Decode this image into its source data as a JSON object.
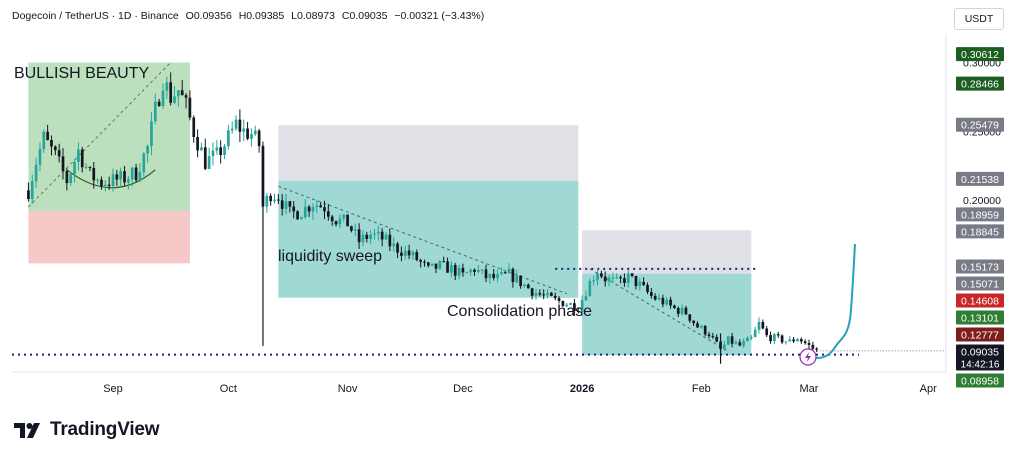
{
  "header": {
    "symbol": "Dogecoin / TetherUS · 1D · Binance",
    "open": "O0.09356",
    "high": "H0.09385",
    "low": "L0.08973",
    "close": "C0.09035",
    "change": "−0.00321 (−3.43%)"
  },
  "currency": "USDT",
  "brand": {
    "name": "TradingView"
  },
  "annotations": {
    "bullish": "BULLISH BEAUTY",
    "liquidity": "liquidity sweep",
    "consolidation": "Consolidation phase"
  },
  "countdown": "14:42:16",
  "colors": {
    "up": "#26a69a",
    "down": "#131722",
    "green_zone": "#a5d6a7",
    "red_zone": "#ef9a9a",
    "teal_zone": "#80cbc4",
    "gray_zone": "#d1d4dc",
    "label_dark_green": "#1b5e20",
    "label_gray": "#787b86",
    "label_red": "#7f1d1d",
    "label_green": "#2e7d32",
    "arrow": "#26a1b8",
    "flash": "#9c27b0"
  },
  "chart_data": {
    "type": "candlestick",
    "symbol": "Dogecoin / TetherUS",
    "interval": "1D",
    "exchange": "Binance",
    "x_ticks": [
      "Sep",
      "Oct",
      "Nov",
      "Dec",
      "2026",
      "Feb",
      "Mar",
      "Apr"
    ],
    "y_ticks": [
      0.1,
      0.15,
      0.2,
      0.25,
      0.3
    ],
    "y_range": [
      0.075,
      0.32
    ],
    "price_labels": [
      {
        "value": 0.30612,
        "label": "0.30612",
        "style": "dark-green"
      },
      {
        "value": 0.28466,
        "label": "0.28466",
        "style": "dark-green"
      },
      {
        "value": 0.25479,
        "label": "0.25479",
        "style": "gray"
      },
      {
        "value": 0.21538,
        "label": "0.21538",
        "style": "gray"
      },
      {
        "value": 0.18959,
        "label": "0.18959",
        "style": "gray"
      },
      {
        "value": 0.18845,
        "label": "0.18845",
        "style": "gray"
      },
      {
        "value": 0.15173,
        "label": "0.15173",
        "style": "gray"
      },
      {
        "value": 0.15071,
        "label": "0.15071",
        "style": "gray"
      },
      {
        "value": 0.14608,
        "label": "0.14608",
        "style": "red"
      },
      {
        "value": 0.13101,
        "label": "0.13101",
        "style": "green"
      },
      {
        "value": 0.12777,
        "label": "0.12777",
        "style": "dark-red"
      },
      {
        "value": 0.09035,
        "label": "0.09035",
        "style": "current"
      },
      {
        "value": 0.08958,
        "label": "0.08958",
        "style": "green"
      }
    ],
    "current_price": 0.09035,
    "support_level": 0.0876,
    "resistance_level": 0.15,
    "close_path": [
      [
        "2025-08-10",
        0.207
      ],
      [
        "2025-08-12",
        0.228
      ],
      [
        "2025-08-14",
        0.245
      ],
      [
        "2025-08-17",
        0.232
      ],
      [
        "2025-08-20",
        0.214
      ],
      [
        "2025-08-23",
        0.236
      ],
      [
        "2025-08-26",
        0.218
      ],
      [
        "2025-08-29",
        0.213
      ],
      [
        "2025-09-01",
        0.214
      ],
      [
        "2025-09-04",
        0.216
      ],
      [
        "2025-09-07",
        0.22
      ],
      [
        "2025-09-10",
        0.238
      ],
      [
        "2025-09-12",
        0.265
      ],
      [
        "2025-09-14",
        0.288
      ],
      [
        "2025-09-16",
        0.275
      ],
      [
        "2025-09-18",
        0.28
      ],
      [
        "2025-09-20",
        0.268
      ],
      [
        "2025-09-22",
        0.25
      ],
      [
        "2025-09-25",
        0.228
      ],
      [
        "2025-09-28",
        0.232
      ],
      [
        "2025-10-01",
        0.245
      ],
      [
        "2025-10-03",
        0.255
      ],
      [
        "2025-10-05",
        0.25
      ],
      [
        "2025-10-07",
        0.248
      ],
      [
        "2025-10-09",
        0.24
      ],
      [
        "2025-10-10",
        0.195
      ],
      [
        "2025-10-12",
        0.205
      ],
      [
        "2025-10-14",
        0.203
      ],
      [
        "2025-10-17",
        0.19
      ],
      [
        "2025-10-20",
        0.192
      ],
      [
        "2025-10-23",
        0.198
      ],
      [
        "2025-10-26",
        0.195
      ],
      [
        "2025-10-29",
        0.186
      ],
      [
        "2025-11-01",
        0.183
      ],
      [
        "2025-11-04",
        0.17
      ],
      [
        "2025-11-07",
        0.175
      ],
      [
        "2025-11-10",
        0.172
      ],
      [
        "2025-11-13",
        0.166
      ],
      [
        "2025-11-16",
        0.162
      ],
      [
        "2025-11-19",
        0.157
      ],
      [
        "2025-11-22",
        0.149
      ],
      [
        "2025-11-25",
        0.152
      ],
      [
        "2025-11-28",
        0.15
      ],
      [
        "2025-12-01",
        0.145
      ],
      [
        "2025-12-04",
        0.15
      ],
      [
        "2025-12-07",
        0.144
      ],
      [
        "2025-12-10",
        0.143
      ],
      [
        "2025-12-13",
        0.146
      ],
      [
        "2025-12-16",
        0.14
      ],
      [
        "2025-12-19",
        0.134
      ],
      [
        "2025-12-22",
        0.13
      ],
      [
        "2025-12-25",
        0.127
      ],
      [
        "2025-12-28",
        0.125
      ],
      [
        "2025-12-31",
        0.122
      ],
      [
        "2026-01-03",
        0.14
      ],
      [
        "2026-01-05",
        0.149
      ],
      [
        "2026-01-07",
        0.143
      ],
      [
        "2026-01-10",
        0.14
      ],
      [
        "2026-01-13",
        0.144
      ],
      [
        "2026-01-16",
        0.138
      ],
      [
        "2026-01-19",
        0.13
      ],
      [
        "2026-01-22",
        0.126
      ],
      [
        "2026-01-25",
        0.121
      ],
      [
        "2026-01-28",
        0.118
      ],
      [
        "2026-01-31",
        0.108
      ],
      [
        "2026-02-03",
        0.103
      ],
      [
        "2026-02-06",
        0.091
      ],
      [
        "2026-02-08",
        0.098
      ],
      [
        "2026-02-11",
        0.094
      ],
      [
        "2026-02-14",
        0.099
      ],
      [
        "2026-02-16",
        0.11
      ],
      [
        "2026-02-18",
        0.101
      ],
      [
        "2026-02-21",
        0.099
      ],
      [
        "2026-02-24",
        0.097
      ],
      [
        "2026-02-26",
        0.1
      ],
      [
        "2026-03-01",
        0.094
      ],
      [
        "2026-03-03",
        0.09035
      ]
    ],
    "zones": [
      {
        "name": "BULLISH BEAUTY",
        "from": "2025-08-10",
        "to": "2025-09-21",
        "low": 0.192,
        "high": 0.3,
        "color": "green"
      },
      {
        "from": "2025-08-10",
        "to": "2025-09-21",
        "low": 0.154,
        "high": 0.192,
        "color": "red"
      },
      {
        "name": "liquidity sweep",
        "from": "2025-10-14",
        "to": "2025-12-31",
        "low": 0.129,
        "high": 0.214,
        "color": "teal"
      },
      {
        "from": "2025-10-14",
        "to": "2025-12-31",
        "low": 0.214,
        "high": 0.2545,
        "color": "gray"
      },
      {
        "name": "Consolidation phase",
        "from": "2026-01-01",
        "to": "2026-02-14",
        "low": 0.0872,
        "high": 0.1465,
        "color": "teal"
      },
      {
        "from": "2026-01-01",
        "to": "2026-02-14",
        "low": 0.1465,
        "high": 0.178,
        "color": "gray"
      }
    ],
    "projection": "up from ~0.085 toward ~0.165 in early March",
    "grid": false
  }
}
